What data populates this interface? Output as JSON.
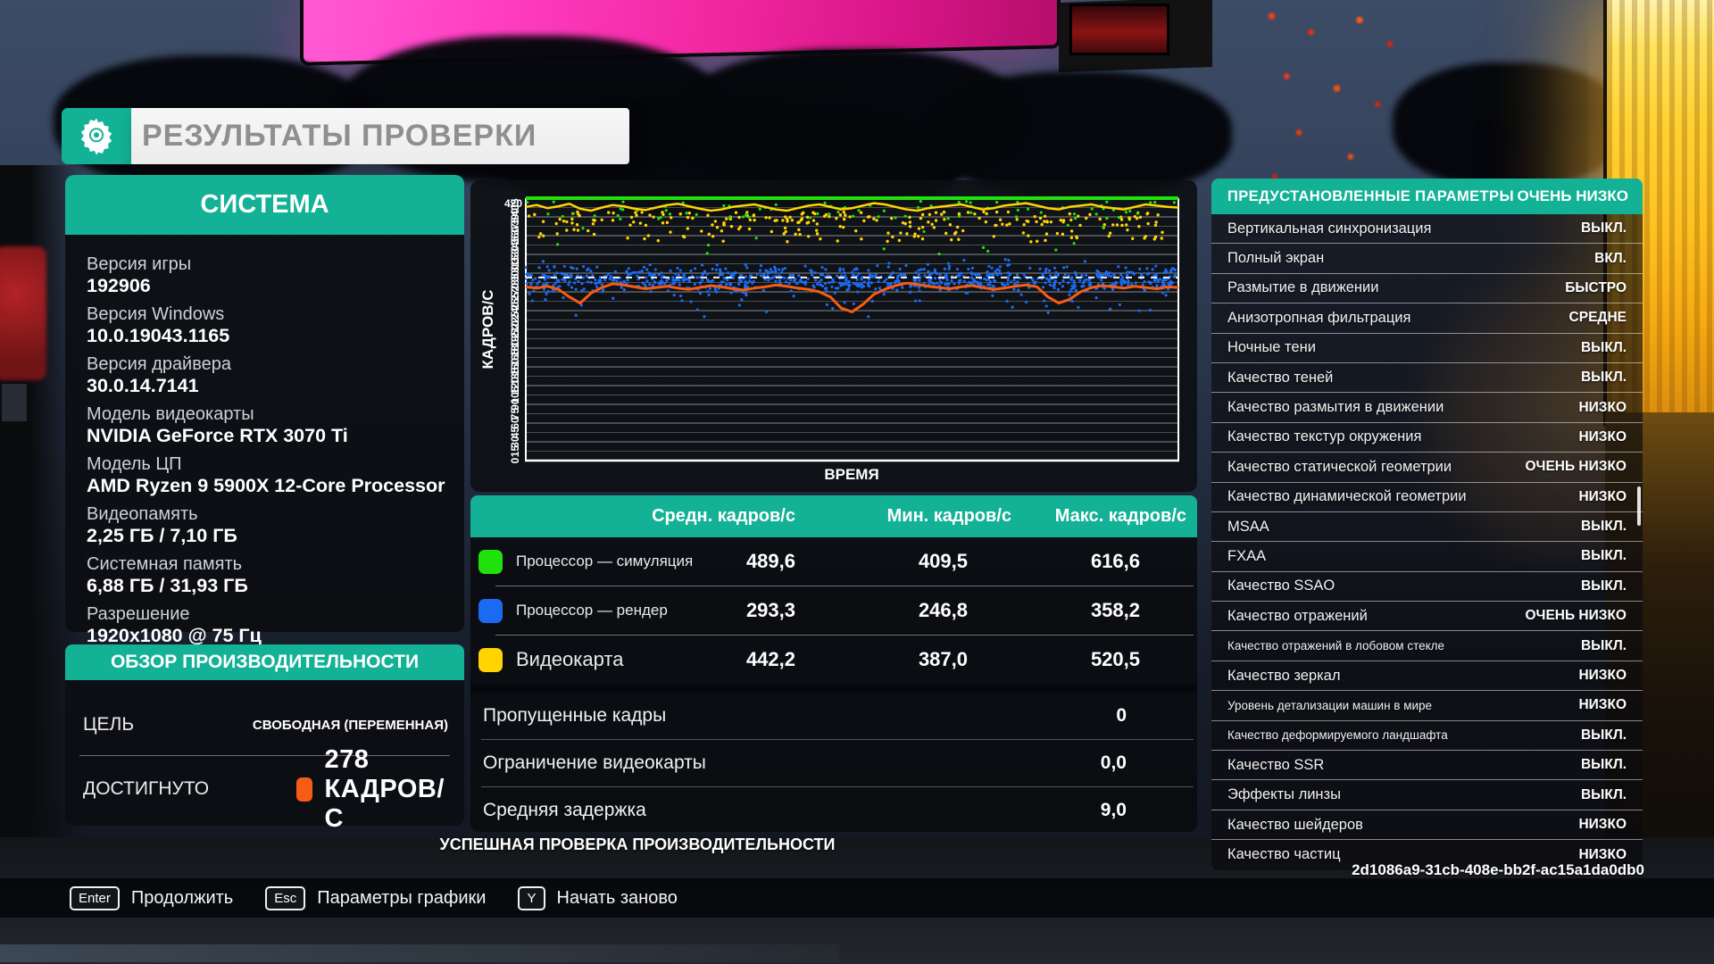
{
  "title": "РЕЗУЛЬТАТЫ ПРОВЕРКИ",
  "colors": {
    "accent_teal": "#13b195",
    "orange": "#f65c14",
    "green": "#1fe20c",
    "blue": "#1b6bf2",
    "yellow": "#ffd400"
  },
  "system": {
    "header": "СИСТЕМА",
    "items": [
      {
        "label": "Версия игры",
        "value": "192906"
      },
      {
        "label": "Версия Windows",
        "value": "10.0.19043.1165"
      },
      {
        "label": "Версия драйвера",
        "value": "30.0.14.7141"
      },
      {
        "label": "Модель видеокарты",
        "value": "NVIDIA GeForce RTX 3070 Ti"
      },
      {
        "label": "Модель ЦП",
        "value": "AMD Ryzen 9 5900X 12-Core Processor"
      },
      {
        "label": "Видеопамять",
        "value": "2,25 ГБ / 7,10 ГБ"
      },
      {
        "label": "Системная память",
        "value": "6,88 ГБ / 31,93 ГБ"
      },
      {
        "label": "Разрешение",
        "value": "1920x1080 @ 75 Гц"
      }
    ]
  },
  "overview": {
    "header": "ОБЗОР ПРОИЗВОДИТЕЛЬНОСТИ",
    "target_label": "ЦЕЛЬ",
    "target_value": "СВОБОДНАЯ (ПЕРЕМЕННАЯ)",
    "achieved_label": "ДОСТИГНУТО",
    "achieved_value": "278 КАДРОВ/С"
  },
  "chart_data": {
    "type": "line+scatter",
    "xlabel": "ВРЕМЯ",
    "ylabel": "КАДРОВ/С",
    "ylim": [
      0,
      420
    ],
    "ytick_step": 15,
    "grid": true,
    "seed": 42,
    "series": [
      {
        "name": "Процессор — рендер (точки)",
        "type": "scatter",
        "color": "#1b6bf2",
        "count": 900,
        "dist": "gauss",
        "y_mean": 289,
        "y_sd": 11,
        "y_clip": [
          255,
          322
        ],
        "r": 1.6
      },
      {
        "name": "Процессор — рендер (выбросы)",
        "type": "scatter",
        "color": "#1b6bf2",
        "count": 30,
        "y_min": 228,
        "y_max": 262,
        "r": 1.6
      },
      {
        "name": "Видеокарта (точки)",
        "type": "scatter",
        "color": "#ffd400",
        "count": 170,
        "y_min": 376,
        "y_max": 398,
        "r": 1.7
      },
      {
        "name": "Видеокарта (точки ниже)",
        "type": "scatter",
        "color": "#ffd400",
        "count": 90,
        "y_min": 350,
        "y_max": 376,
        "r": 1.7
      },
      {
        "name": "Процессор — симуляция (точки)",
        "type": "scatter",
        "color": "#1fe20c",
        "count": 80,
        "y_min": 386,
        "y_max": 416,
        "r": 1.6
      },
      {
        "name": "Процессор — симуляция (редкие точки)",
        "type": "scatter",
        "color": "#1fe20c",
        "count": 14,
        "y_min": 330,
        "y_max": 384,
        "r": 1.6
      },
      {
        "name": "Средняя частота рендера",
        "type": "line",
        "color": "#ffffff",
        "width": 2,
        "dash": "7 7",
        "opacity": 0.95,
        "points": [
          293,
          293
        ]
      },
      {
        "name": "Видеокарта (линия)",
        "type": "line",
        "color": "#ffd400",
        "width": 2.5,
        "points": [
          406,
          409,
          404,
          407,
          411,
          403,
          400,
          405,
          409,
          407,
          403,
          401,
          405,
          409,
          411,
          407,
          403,
          400,
          402,
          406,
          408,
          410,
          406,
          402,
          400,
          404,
          408,
          410,
          406,
          402,
          404,
          408,
          412,
          410,
          406,
          402,
          400,
          404,
          406,
          408,
          410,
          406,
          402,
          404,
          408,
          410,
          412,
          408,
          404,
          402,
          406,
          408,
          410,
          406,
          404,
          402,
          406,
          410,
          408,
          406,
          405
        ]
      },
      {
        "name": "Достигнуто (линия)",
        "type": "line",
        "color": "#f65c14",
        "width": 3,
        "points": [
          278,
          276,
          279,
          274,
          262,
          252,
          268,
          277,
          283,
          281,
          278,
          275,
          277,
          279,
          276,
          274,
          277,
          280,
          278,
          275,
          273,
          276,
          278,
          281,
          279,
          276,
          274,
          270,
          262,
          244,
          238,
          250,
          266,
          274,
          280,
          284,
          282,
          279,
          277,
          275,
          278,
          280,
          277,
          274,
          276,
          279,
          281,
          278,
          262,
          252,
          258,
          270,
          277,
          280,
          278,
          276,
          279,
          277,
          275,
          278,
          277
        ]
      },
      {
        "name": "Процессор — симуляция (линия)",
        "type": "line",
        "color": "#1fe20c",
        "width": 4,
        "points": [
          420,
          420
        ]
      }
    ]
  },
  "results_table": {
    "headers": [
      "Средн. кадров/с",
      "Мин. кадров/с",
      "Макс. кадров/с"
    ],
    "rows": [
      {
        "id": "cpu-simulation",
        "color": "#1fe20c",
        "label": "Процессор — симуляция",
        "label_size": 17,
        "avg": "489,6",
        "min": "409,5",
        "max": "616,6"
      },
      {
        "id": "cpu-render",
        "color": "#1b6bf2",
        "label": "Процессор — рендер",
        "label_size": 17,
        "avg": "293,3",
        "min": "246,8",
        "max": "358,2"
      },
      {
        "id": "gpu",
        "color": "#ffd400",
        "label": "Видеокарта",
        "label_size": 22,
        "avg": "442,2",
        "min": "387,0",
        "max": "520,5"
      }
    ],
    "extra_rows": [
      {
        "id": "dropped-frames",
        "label": "Пропущенные кадры",
        "value": "0"
      },
      {
        "id": "gpu-bound",
        "label": "Ограничение видеокарты",
        "value": "0,0"
      },
      {
        "id": "avg-latency",
        "label": "Средняя задержка",
        "value": "9,0"
      }
    ]
  },
  "success_message": "УСПЕШНАЯ ПРОВЕРКА ПРОИЗВОДИТЕЛЬНОСТИ",
  "presets": {
    "header": "ПРЕДУСТАНОВЛЕННЫЕ ПАРАМЕТРЫ",
    "header_value": "ОЧЕНЬ НИЗКО",
    "rows": [
      {
        "label": "Вертикальная синхронизация",
        "value": "ВЫКЛ."
      },
      {
        "label": "Полный экран",
        "value": "ВКЛ."
      },
      {
        "label": "Размытие в движении",
        "value": "БЫСТРО"
      },
      {
        "label": "Анизотропная фильтрация",
        "value": "СРЕДНЕ"
      },
      {
        "label": "Ночные тени",
        "value": "ВЫКЛ."
      },
      {
        "label": "Качество теней",
        "value": "ВЫКЛ."
      },
      {
        "label": "Качество размытия в движении",
        "value": "НИЗКО"
      },
      {
        "label": "Качество текстур окружения",
        "value": "НИЗКО"
      },
      {
        "label": "Качество статической геометрии",
        "value": "ОЧЕНЬ НИЗКО"
      },
      {
        "label": "Качество динамической геометрии",
        "value": "НИЗКО"
      },
      {
        "label": "MSAA",
        "value": "ВЫКЛ."
      },
      {
        "label": "FXAA",
        "value": "ВЫКЛ."
      },
      {
        "label": "Качество SSAO",
        "value": "ВЫКЛ."
      },
      {
        "label": "Качество отражений",
        "value": "ОЧЕНЬ НИЗКО"
      },
      {
        "label": "Качество отражений в лобовом стекле",
        "value": "ВЫКЛ.",
        "small": true
      },
      {
        "label": "Качество зеркал",
        "value": "НИЗКО"
      },
      {
        "label": "Уровень детализации машин в мире",
        "value": "НИЗКО",
        "small": true
      },
      {
        "label": "Качество деформируемого ландшафта",
        "value": "ВЫКЛ.",
        "small": true
      },
      {
        "label": "Качество SSR",
        "value": "ВЫКЛ."
      },
      {
        "label": "Эффекты линзы",
        "value": "ВЫКЛ."
      },
      {
        "label": "Качество шейдеров",
        "value": "НИЗКО"
      },
      {
        "label": "Качество частиц",
        "value": "НИЗКО"
      }
    ]
  },
  "session_id": "2d1086a9-31cb-408e-bb2f-ac15a1da0db0",
  "footer": {
    "buttons": [
      {
        "name": "continue",
        "key": "Enter",
        "label": "Продолжить"
      },
      {
        "name": "graphics-settings",
        "key": "Esc",
        "label": "Параметры графики"
      },
      {
        "name": "restart",
        "key": "Y",
        "label": "Начать заново"
      }
    ]
  }
}
